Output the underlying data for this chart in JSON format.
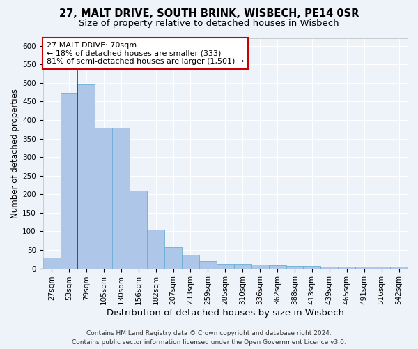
{
  "title_line1": "27, MALT DRIVE, SOUTH BRINK, WISBECH, PE14 0SR",
  "title_line2": "Size of property relative to detached houses in Wisbech",
  "xlabel": "Distribution of detached houses by size in Wisbech",
  "ylabel": "Number of detached properties",
  "categories": [
    "27sqm",
    "53sqm",
    "79sqm",
    "105sqm",
    "130sqm",
    "156sqm",
    "182sqm",
    "207sqm",
    "233sqm",
    "259sqm",
    "285sqm",
    "310sqm",
    "336sqm",
    "362sqm",
    "388sqm",
    "413sqm",
    "439sqm",
    "465sqm",
    "491sqm",
    "516sqm",
    "542sqm"
  ],
  "values": [
    30,
    474,
    495,
    380,
    380,
    210,
    105,
    57,
    37,
    20,
    13,
    12,
    10,
    9,
    6,
    6,
    5,
    5,
    5,
    4,
    5
  ],
  "bar_color": "#aec6e8",
  "bar_edge_color": "#6aaed6",
  "vline_x": 1.5,
  "vline_color": "#cc0000",
  "annotation_text": "27 MALT DRIVE: 70sqm\n← 18% of detached houses are smaller (333)\n81% of semi-detached houses are larger (1,501) →",
  "annotation_box_color": "#ffffff",
  "annotation_box_edge": "#cc0000",
  "ylim": [
    0,
    620
  ],
  "yticks": [
    0,
    50,
    100,
    150,
    200,
    250,
    300,
    350,
    400,
    450,
    500,
    550,
    600
  ],
  "footer_line1": "Contains HM Land Registry data © Crown copyright and database right 2024.",
  "footer_line2": "Contains public sector information licensed under the Open Government Licence v3.0.",
  "bg_color": "#eef2f9",
  "plot_bg_color": "#eef2f9",
  "grid_color": "#ffffff",
  "title_fontsize": 10.5,
  "subtitle_fontsize": 9.5,
  "axis_label_fontsize": 8.5,
  "tick_fontsize": 7.5,
  "annotation_fontsize": 8,
  "footer_fontsize": 6.5
}
